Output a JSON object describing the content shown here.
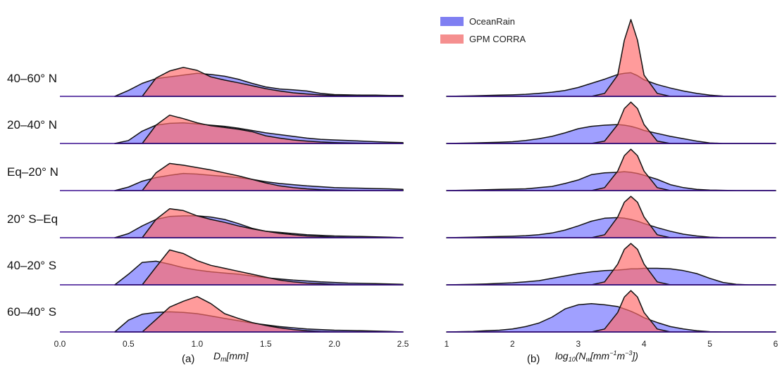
{
  "chart_data": [
    {
      "type": "area",
      "panel_label": "(a)",
      "xlabel": "D_m[mm]",
      "xlim": [
        0,
        2.5
      ],
      "xticks": [
        "0.0",
        "0.5",
        "1.0",
        "1.5",
        "2.0",
        "2.5"
      ],
      "x": [
        0.4,
        0.5,
        0.6,
        0.7,
        0.8,
        0.9,
        1.0,
        1.1,
        1.2,
        1.3,
        1.4,
        1.5,
        1.6,
        1.7,
        1.8,
        1.9,
        2.0,
        2.1,
        2.2,
        2.3,
        2.4,
        2.5
      ],
      "rows": [
        {
          "label": "40–60° N",
          "OceanRain": [
            0.0,
            0.2,
            0.44,
            0.6,
            0.66,
            0.72,
            0.78,
            0.74,
            0.68,
            0.58,
            0.44,
            0.32,
            0.25,
            0.22,
            0.18,
            0.1,
            0.06,
            0.05,
            0.04,
            0.04,
            0.03,
            0.03
          ],
          "GPM CORRA": [
            0.0,
            0.0,
            0.0,
            0.62,
            0.86,
            0.98,
            0.88,
            0.66,
            0.55,
            0.46,
            0.36,
            0.26,
            0.18,
            0.12,
            0.08,
            0.05,
            0.03,
            0.02,
            0.01,
            0.0,
            0.0,
            0.0
          ]
        },
        {
          "label": "20–40° N",
          "OceanRain": [
            0.0,
            0.1,
            0.42,
            0.62,
            0.68,
            0.7,
            0.66,
            0.62,
            0.58,
            0.52,
            0.44,
            0.36,
            0.3,
            0.24,
            0.18,
            0.14,
            0.12,
            0.1,
            0.08,
            0.06,
            0.04,
            0.03
          ],
          "GPM CORRA": [
            0.0,
            0.0,
            0.0,
            0.62,
            0.96,
            0.84,
            0.7,
            0.6,
            0.54,
            0.48,
            0.4,
            0.26,
            0.18,
            0.12,
            0.08,
            0.05,
            0.03,
            0.02,
            0.01,
            0.0,
            0.0,
            0.0
          ]
        },
        {
          "label": "Eq–20° N",
          "OceanRain": [
            0.0,
            0.12,
            0.32,
            0.44,
            0.52,
            0.58,
            0.56,
            0.52,
            0.48,
            0.44,
            0.38,
            0.3,
            0.24,
            0.2,
            0.16,
            0.13,
            0.1,
            0.09,
            0.08,
            0.07,
            0.06,
            0.04
          ],
          "GPM CORRA": [
            0.0,
            0.0,
            0.0,
            0.6,
            0.92,
            0.86,
            0.78,
            0.7,
            0.6,
            0.5,
            0.38,
            0.26,
            0.16,
            0.1,
            0.06,
            0.03,
            0.02,
            0.01,
            0.0,
            0.0,
            0.0,
            0.0
          ]
        },
        {
          "label": "20° S–Eq",
          "OceanRain": [
            0.0,
            0.14,
            0.4,
            0.62,
            0.72,
            0.74,
            0.74,
            0.7,
            0.62,
            0.48,
            0.32,
            0.22,
            0.18,
            0.14,
            0.1,
            0.08,
            0.06,
            0.05,
            0.04,
            0.03,
            0.02,
            0.0
          ],
          "GPM CORRA": [
            0.0,
            0.0,
            0.0,
            0.62,
            0.98,
            0.92,
            0.74,
            0.62,
            0.52,
            0.4,
            0.3,
            0.22,
            0.15,
            0.1,
            0.06,
            0.04,
            0.02,
            0.01,
            0.0,
            0.0,
            0.0,
            0.0
          ]
        },
        {
          "label": "40–20° S",
          "OceanRain": [
            0.0,
            0.36,
            0.76,
            0.8,
            0.7,
            0.58,
            0.5,
            0.44,
            0.4,
            0.36,
            0.3,
            0.24,
            0.2,
            0.16,
            0.13,
            0.1,
            0.08,
            0.06,
            0.05,
            0.04,
            0.03,
            0.02
          ],
          "GPM CORRA": [
            0.0,
            0.0,
            0.0,
            0.6,
            1.18,
            1.06,
            0.82,
            0.66,
            0.56,
            0.46,
            0.36,
            0.26,
            0.16,
            0.1,
            0.06,
            0.04,
            0.02,
            0.01,
            0.0,
            0.0,
            0.0,
            0.0
          ]
        },
        {
          "label": "60–40° S",
          "OceanRain": [
            0.0,
            0.4,
            0.6,
            0.66,
            0.68,
            0.66,
            0.62,
            0.54,
            0.46,
            0.38,
            0.3,
            0.24,
            0.18,
            0.14,
            0.1,
            0.08,
            0.06,
            0.05,
            0.04,
            0.03,
            0.02,
            0.0
          ],
          "GPM CORRA": [
            0.0,
            0.0,
            0.0,
            0.42,
            0.84,
            1.04,
            1.2,
            0.96,
            0.62,
            0.46,
            0.32,
            0.22,
            0.14,
            0.08,
            0.04,
            0.02,
            0.01,
            0.0,
            0.0,
            0.0,
            0.0,
            0.0
          ]
        }
      ]
    },
    {
      "type": "area",
      "panel_label": "(b)",
      "xlabel": "log_10(N_w[mm^-1 m^-3])",
      "xlim": [
        1,
        6
      ],
      "xticks": [
        "1",
        "2",
        "3",
        "4",
        "5",
        "6"
      ],
      "x": [
        1.0,
        1.2,
        1.4,
        1.6,
        1.8,
        2.0,
        2.2,
        2.4,
        2.6,
        2.8,
        3.0,
        3.2,
        3.4,
        3.6,
        3.7,
        3.8,
        3.9,
        4.0,
        4.2,
        4.4,
        4.6,
        4.8,
        5.0,
        5.2,
        5.4,
        5.6,
        5.8,
        6.0
      ],
      "rows": [
        {
          "label": "40–60° N",
          "OceanRain": [
            0.0,
            0.01,
            0.02,
            0.03,
            0.04,
            0.05,
            0.07,
            0.1,
            0.14,
            0.2,
            0.3,
            0.44,
            0.58,
            0.74,
            0.78,
            0.8,
            0.7,
            0.56,
            0.4,
            0.28,
            0.18,
            0.1,
            0.04,
            0.01,
            0.0,
            0.0,
            0.0,
            0.0
          ],
          "GPM CORRA": [
            0.0,
            0.0,
            0.0,
            0.0,
            0.0,
            0.0,
            0.0,
            0.0,
            0.0,
            0.0,
            0.0,
            0.0,
            0.1,
            0.72,
            1.9,
            2.6,
            1.9,
            0.72,
            0.1,
            0.0,
            0.0,
            0.0,
            0.0,
            0.0,
            0.0,
            0.0,
            0.0,
            0.0
          ]
        },
        {
          "label": "20–40° N",
          "OceanRain": [
            0.0,
            0.01,
            0.02,
            0.03,
            0.04,
            0.06,
            0.1,
            0.16,
            0.24,
            0.36,
            0.5,
            0.58,
            0.62,
            0.64,
            0.62,
            0.58,
            0.52,
            0.44,
            0.34,
            0.24,
            0.16,
            0.08,
            0.02,
            0.0,
            0.0,
            0.0,
            0.0,
            0.0
          ],
          "GPM CORRA": [
            0.0,
            0.0,
            0.0,
            0.0,
            0.0,
            0.0,
            0.0,
            0.0,
            0.0,
            0.0,
            0.0,
            0.0,
            0.08,
            0.64,
            1.18,
            1.4,
            1.18,
            0.64,
            0.08,
            0.0,
            0.0,
            0.0,
            0.0,
            0.0,
            0.0,
            0.0,
            0.0,
            0.0
          ]
        },
        {
          "label": "Eq–20° N",
          "OceanRain": [
            0.0,
            0.01,
            0.02,
            0.03,
            0.04,
            0.05,
            0.06,
            0.1,
            0.14,
            0.24,
            0.36,
            0.54,
            0.6,
            0.62,
            0.64,
            0.62,
            0.58,
            0.52,
            0.38,
            0.2,
            0.1,
            0.04,
            0.02,
            0.01,
            0.0,
            0.0,
            0.0,
            0.0
          ],
          "GPM CORRA": [
            0.0,
            0.0,
            0.0,
            0.0,
            0.0,
            0.0,
            0.0,
            0.0,
            0.0,
            0.0,
            0.0,
            0.0,
            0.1,
            0.66,
            1.18,
            1.4,
            1.18,
            0.66,
            0.1,
            0.0,
            0.0,
            0.0,
            0.0,
            0.0,
            0.0,
            0.0,
            0.0,
            0.0
          ]
        },
        {
          "label": "20° S–Eq",
          "OceanRain": [
            0.0,
            0.01,
            0.02,
            0.03,
            0.04,
            0.05,
            0.07,
            0.1,
            0.16,
            0.26,
            0.4,
            0.56,
            0.66,
            0.68,
            0.66,
            0.62,
            0.56,
            0.48,
            0.34,
            0.22,
            0.12,
            0.06,
            0.02,
            0.0,
            0.0,
            0.0,
            0.0,
            0.0
          ],
          "GPM CORRA": [
            0.0,
            0.0,
            0.0,
            0.0,
            0.0,
            0.0,
            0.0,
            0.0,
            0.0,
            0.0,
            0.0,
            0.0,
            0.1,
            0.7,
            1.2,
            1.4,
            1.2,
            0.7,
            0.1,
            0.0,
            0.0,
            0.0,
            0.0,
            0.0,
            0.0,
            0.0,
            0.0,
            0.0
          ]
        },
        {
          "label": "40–20° S",
          "OceanRain": [
            0.0,
            0.01,
            0.02,
            0.03,
            0.05,
            0.07,
            0.1,
            0.14,
            0.22,
            0.3,
            0.38,
            0.44,
            0.48,
            0.5,
            0.52,
            0.54,
            0.54,
            0.56,
            0.56,
            0.54,
            0.48,
            0.38,
            0.22,
            0.08,
            0.02,
            0.0,
            0.0,
            0.0
          ],
          "GPM CORRA": [
            0.0,
            0.0,
            0.0,
            0.0,
            0.0,
            0.0,
            0.0,
            0.0,
            0.0,
            0.0,
            0.0,
            0.0,
            0.1,
            0.7,
            1.2,
            1.4,
            1.2,
            0.7,
            0.1,
            0.0,
            0.0,
            0.0,
            0.0,
            0.0,
            0.0,
            0.0,
            0.0,
            0.0
          ]
        },
        {
          "label": "60–40° S",
          "OceanRain": [
            0.0,
            0.01,
            0.02,
            0.04,
            0.06,
            0.1,
            0.18,
            0.3,
            0.5,
            0.78,
            0.92,
            0.96,
            0.92,
            0.86,
            0.78,
            0.7,
            0.6,
            0.48,
            0.32,
            0.18,
            0.1,
            0.04,
            0.01,
            0.0,
            0.0,
            0.0,
            0.0,
            0.0
          ],
          "GPM CORRA": [
            0.0,
            0.0,
            0.0,
            0.0,
            0.0,
            0.0,
            0.0,
            0.0,
            0.0,
            0.0,
            0.0,
            0.0,
            0.1,
            0.66,
            1.18,
            1.4,
            1.18,
            0.66,
            0.1,
            0.0,
            0.0,
            0.0,
            0.0,
            0.0,
            0.0,
            0.0,
            0.0,
            0.0
          ]
        }
      ]
    }
  ],
  "legend": {
    "placement": "top-left of panel (b)",
    "items": [
      {
        "name": "OceanRain",
        "color": "#7f7ff2"
      },
      {
        "name": "GPM CORRA",
        "color": "#f58f8f"
      }
    ]
  },
  "colors": {
    "OceanRain": "#6666ff",
    "GPM CORRA": "#ff6b6b",
    "baseline": "#3a0f8f",
    "outline": "#111111"
  },
  "row_labels": [
    "40–60° N",
    "20–40° N",
    "Eq–20° N",
    "20° S–Eq",
    "40–20° S",
    "60–40° S"
  ],
  "panel_labels": {
    "a": "(a)",
    "b": "(b)"
  }
}
